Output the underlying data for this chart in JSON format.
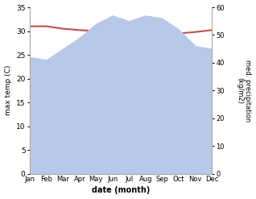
{
  "months": [
    "Jan",
    "Feb",
    "Mar",
    "Apr",
    "May",
    "Jun",
    "Jul",
    "Aug",
    "Sep",
    "Oct",
    "Nov",
    "Dec"
  ],
  "temp": [
    31.0,
    31.0,
    30.5,
    30.2,
    30.0,
    29.5,
    27.8,
    27.8,
    28.5,
    29.5,
    29.8,
    30.2
  ],
  "precip": [
    42,
    41,
    45,
    49,
    54,
    57,
    55,
    57,
    56,
    52,
    46,
    45
  ],
  "temp_color": "#c0504d",
  "precip_fill_color": "#b8c8e8",
  "background_color": "#ffffff",
  "xlabel": "date (month)",
  "ylabel_left": "max temp (C)",
  "ylabel_right": "med. precipitation\n(kg/m2)",
  "ylim_left": [
    0,
    35
  ],
  "ylim_right": [
    0,
    60
  ],
  "yticks_left": [
    0,
    5,
    10,
    15,
    20,
    25,
    30,
    35
  ],
  "yticks_right": [
    0,
    10,
    20,
    30,
    40,
    50,
    60
  ]
}
